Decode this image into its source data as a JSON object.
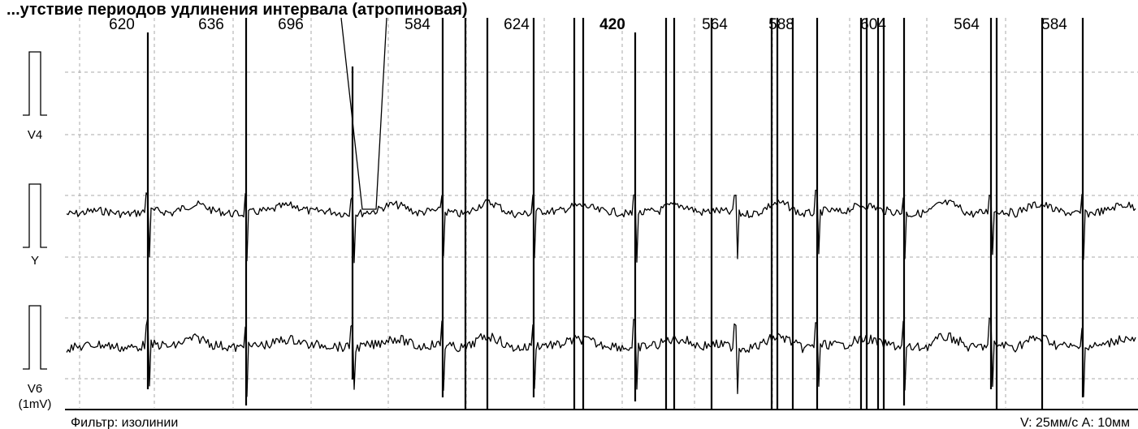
{
  "header_text": "...утствие периодов удлинения интервала (атропиновая)",
  "chart_data": {
    "type": "line",
    "title": "",
    "intervals": [
      {
        "value": "620",
        "bold": false
      },
      {
        "value": "636",
        "bold": false
      },
      {
        "value": "696",
        "bold": false
      },
      {
        "value": "584",
        "bold": false
      },
      {
        "value": "624",
        "bold": false
      },
      {
        "value": "420",
        "bold": true
      },
      {
        "value": "564",
        "bold": false
      },
      {
        "value": "588",
        "bold": false
      },
      {
        "value": "604",
        "bold": false
      },
      {
        "value": "564",
        "bold": false
      },
      {
        "value": "584",
        "bold": false
      }
    ],
    "leads": [
      "V4",
      "Y",
      "V6"
    ],
    "calibration_label": "(1mV)",
    "grid": true
  },
  "footer": {
    "filter_label": "Фильтр: изолинии",
    "scale_label": "V: 25мм/с  A: 10мм"
  }
}
